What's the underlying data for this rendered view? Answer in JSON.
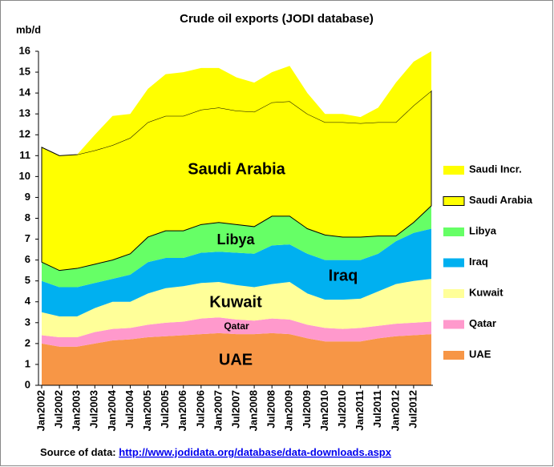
{
  "chart_data": {
    "type": "stacked_area",
    "title": "Crude oil exports (JODI database)",
    "y_label": "mb/d",
    "source_label": "Source of data:",
    "source_url": "http://www.jodidata.org/database/data-downloads.aspx",
    "categories": [
      "Jan2002",
      "Jul2002",
      "Jan2003",
      "Jul2003",
      "Jan2004",
      "Jul2004",
      "Jan2005",
      "Jul2005",
      "Jan2006",
      "Jul2006",
      "Jan2007",
      "Jul2007",
      "Jan2008",
      "Jul2008",
      "Jan2009",
      "Jul2009",
      "Jan2010",
      "Jul2010",
      "Jan2011",
      "Jul2011",
      "Jan2012",
      "Jul2012",
      null
    ],
    "series": [
      {
        "name": "UAE",
        "color": "#f79646",
        "values": [
          2.0,
          1.85,
          1.85,
          2.0,
          2.15,
          2.2,
          2.3,
          2.35,
          2.4,
          2.45,
          2.5,
          2.45,
          2.45,
          2.5,
          2.45,
          2.25,
          2.1,
          2.1,
          2.1,
          2.25,
          2.35,
          2.4,
          2.45
        ]
      },
      {
        "name": "Qatar",
        "color": "#ff99cc",
        "values": [
          0.4,
          0.45,
          0.45,
          0.55,
          0.55,
          0.55,
          0.6,
          0.65,
          0.65,
          0.75,
          0.75,
          0.7,
          0.65,
          0.7,
          0.7,
          0.65,
          0.65,
          0.6,
          0.65,
          0.6,
          0.6,
          0.6,
          0.6
        ]
      },
      {
        "name": "Kuwait",
        "color": "#ffff99",
        "values": [
          1.1,
          1.0,
          1.0,
          1.15,
          1.3,
          1.25,
          1.5,
          1.65,
          1.7,
          1.7,
          1.7,
          1.65,
          1.6,
          1.65,
          1.8,
          1.5,
          1.35,
          1.4,
          1.4,
          1.65,
          1.9,
          2.0,
          2.05
        ]
      },
      {
        "name": "Iraq",
        "color": "#00b0f0",
        "values": [
          1.5,
          1.4,
          1.4,
          1.2,
          1.1,
          1.3,
          1.5,
          1.45,
          1.35,
          1.45,
          1.45,
          1.55,
          1.6,
          1.85,
          1.8,
          1.9,
          1.9,
          1.9,
          1.85,
          1.8,
          2.05,
          2.3,
          2.4
        ]
      },
      {
        "name": "Libya",
        "color": "#66ff66",
        "values": [
          0.9,
          0.8,
          0.9,
          0.9,
          0.9,
          1.0,
          1.2,
          1.3,
          1.3,
          1.35,
          1.4,
          1.35,
          1.3,
          1.4,
          1.35,
          1.2,
          1.2,
          1.1,
          1.1,
          0.85,
          0.25,
          0.5,
          1.1
        ]
      },
      {
        "name": "Saudi Arabia",
        "color": "#ffff00",
        "values": [
          5.5,
          5.5,
          5.45,
          5.45,
          5.5,
          5.55,
          5.5,
          5.5,
          5.5,
          5.5,
          5.5,
          5.45,
          5.5,
          5.45,
          5.5,
          5.5,
          5.4,
          5.5,
          5.45,
          5.45,
          5.45,
          5.6,
          5.5
        ]
      },
      {
        "name": "Saudi Incr.",
        "color": "#ffff00",
        "values": [
          0,
          0,
          0,
          0.75,
          1.4,
          1.15,
          1.6,
          2.0,
          2.1,
          2.0,
          1.9,
          1.6,
          1.4,
          1.45,
          1.7,
          1.0,
          0.4,
          0.4,
          0.3,
          0.7,
          1.9,
          2.1,
          1.9
        ]
      }
    ],
    "ylim": [
      0,
      16
    ],
    "yticks": [
      0,
      1,
      2,
      3,
      4,
      5,
      6,
      7,
      8,
      9,
      10,
      11,
      12,
      13,
      14,
      15,
      16
    ],
    "grid": false
  }
}
